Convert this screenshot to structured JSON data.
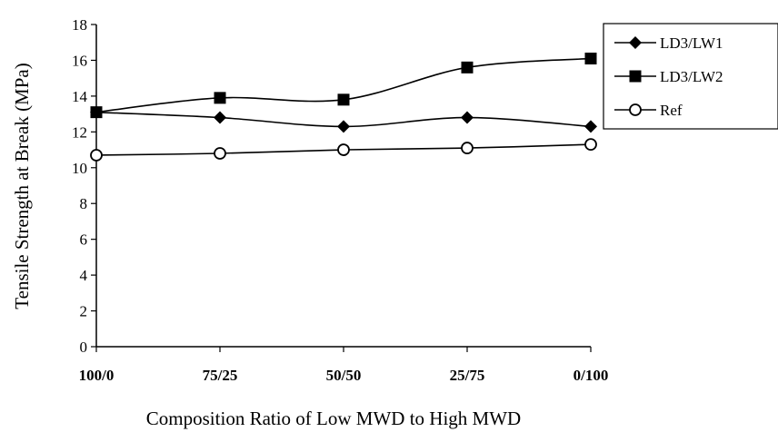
{
  "chart_data": {
    "type": "line",
    "title": "",
    "xlabel": "Composition Ratio of Low MWD to High MWD",
    "ylabel": "Tensile Strength at Break (MPa)",
    "categories": [
      "100/0",
      "75/25",
      "50/50",
      "25/75",
      "0/100"
    ],
    "ylim": [
      0,
      18
    ],
    "yticks": [
      0,
      2,
      4,
      6,
      8,
      10,
      12,
      14,
      16,
      18
    ],
    "grid": false,
    "legend_position": "top-right",
    "series": [
      {
        "name": "LD3/LW1",
        "marker": "diamond",
        "values": [
          13.1,
          12.8,
          12.3,
          12.8,
          12.3
        ]
      },
      {
        "name": "LD3/LW2",
        "marker": "square",
        "values": [
          13.1,
          13.9,
          13.8,
          15.6,
          16.1
        ]
      },
      {
        "name": "Ref",
        "marker": "open-circle",
        "values": [
          10.7,
          10.8,
          11.0,
          11.1,
          11.3
        ]
      }
    ]
  }
}
